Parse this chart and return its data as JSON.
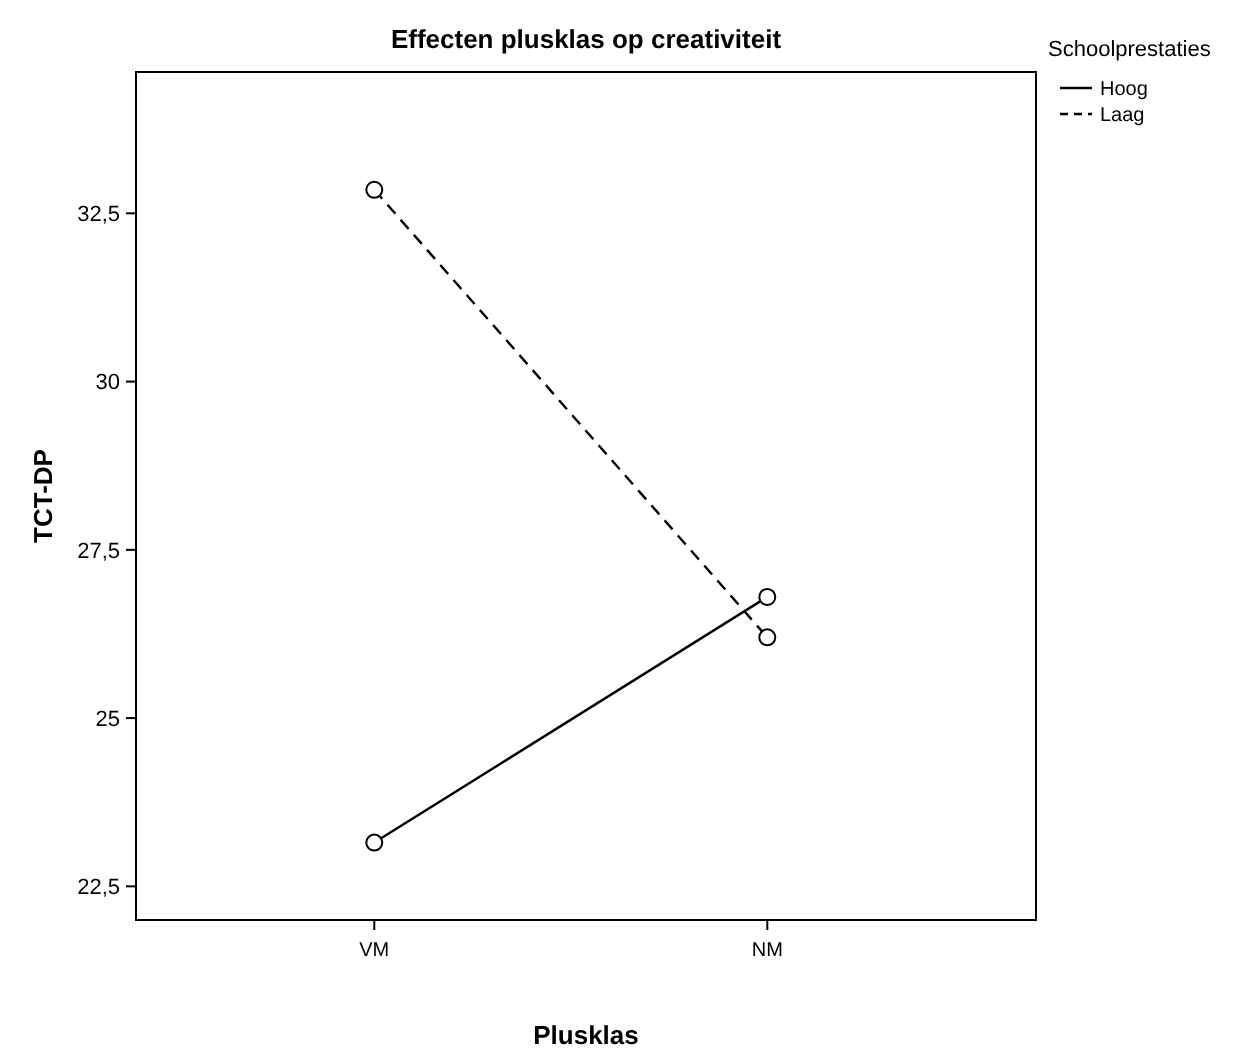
{
  "chart_data": {
    "type": "line",
    "title": "Effecten plusklas op creativiteit",
    "xlabel": "Plusklas",
    "ylabel": "TCT-DP",
    "legend_title": "Schoolprestaties",
    "categories": [
      "VM",
      "NM"
    ],
    "series": [
      {
        "name": "Hoog",
        "color": "#000000",
        "values": [
          23.15,
          26.8
        ],
        "line_style": "solid"
      },
      {
        "name": "Laag",
        "color": "#000000",
        "values": [
          32.85,
          26.2
        ],
        "line_style": "dashed"
      }
    ],
    "ylim": [
      22.0,
      34.6
    ],
    "yticks": [
      {
        "value": 22.5,
        "label": "22,5"
      },
      {
        "value": 25,
        "label": "25"
      },
      {
        "value": 27.5,
        "label": "27,5"
      },
      {
        "value": 30,
        "label": "30"
      },
      {
        "value": 32.5,
        "label": "32,5"
      }
    ],
    "grid": false,
    "legend": "top right",
    "marker": "circle"
  }
}
